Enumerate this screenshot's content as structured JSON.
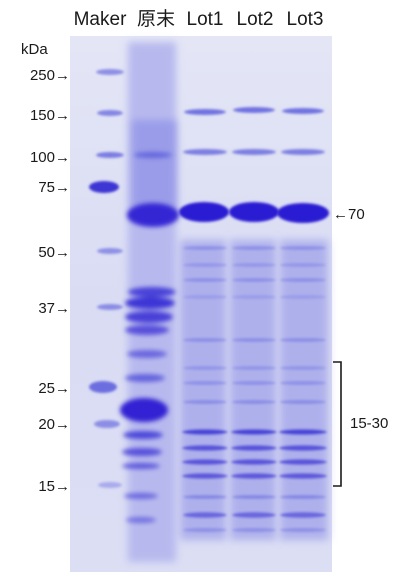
{
  "lanes": [
    "Maker",
    "原末",
    "Lot1",
    "Lot2",
    "Lot3"
  ],
  "marker": {
    "unit": "kDa",
    "labels": [
      "250→",
      "150→",
      "100→",
      "75→",
      "50→",
      "37→",
      "25→",
      "20→",
      "15→"
    ]
  },
  "annotations": {
    "band_70": "←70",
    "range_15_30": "15-30"
  },
  "colors": {
    "gel_background": "#dcdff4",
    "band_stain": "#3a2fd6",
    "text": "#1a1a1a"
  }
}
